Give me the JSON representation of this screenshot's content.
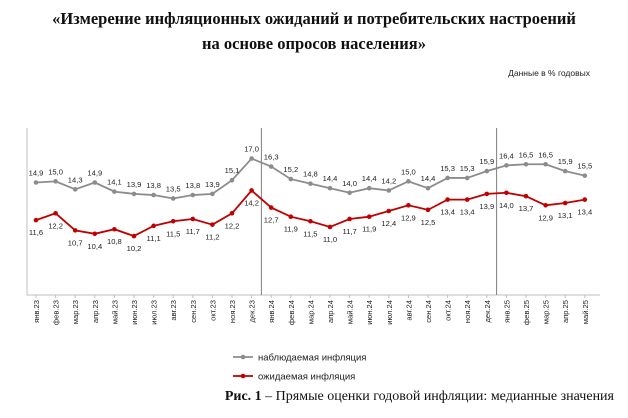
{
  "header": {
    "title_line1": "«Измерение инфляционных ожиданий и потребительских настроений",
    "title_line2": "на основе опросов населения»"
  },
  "units_note": "Данные в % годовых",
  "caption": {
    "label": "Рис. 1",
    "text": " – Прямые оценки годовой инфляции: медианные значения"
  },
  "chart_data": {
    "type": "line",
    "categories": [
      "янв.23",
      "фев.23",
      "мар.23",
      "апр.23",
      "май.23",
      "июн.23",
      "июл.23",
      "авг.23",
      "сен.23",
      "окт.23",
      "ноя.23",
      "дек.23",
      "янв.24",
      "фев.24",
      "мар.24",
      "апр.24",
      "май.24",
      "июн.24",
      "июл.24",
      "авг.24",
      "сен.24",
      "окт.24",
      "ноя.24",
      "дек.24",
      "янв.25",
      "фев.25",
      "мар.25",
      "апр.25",
      "май.25"
    ],
    "series": [
      {
        "name": "наблюдаемая инфляция",
        "color": "#8c8c8c",
        "values": [
          14.9,
          15.0,
          14.3,
          14.9,
          14.1,
          13.9,
          13.8,
          13.5,
          13.8,
          13.9,
          15.1,
          17.0,
          16.3,
          15.2,
          14.8,
          14.4,
          14.0,
          14.4,
          14.2,
          15.0,
          14.4,
          15.3,
          15.3,
          15.9,
          16.4,
          16.5,
          16.5,
          15.9,
          15.5
        ],
        "labels": [
          "14,9",
          "15,0",
          "14,3",
          "14,9",
          "14,1",
          "13,9",
          "13,8",
          "13,5",
          "13,8",
          "13,9",
          "15,1",
          "17,0",
          "16,3",
          "15,2",
          "14,8",
          "14,4",
          "14,0",
          "14,4",
          "14,2",
          "15,0",
          "14,4",
          "15,3",
          "15,3",
          "15,9",
          "16,4",
          "16,5",
          "16,5",
          "15,9",
          "15,5"
        ]
      },
      {
        "name": "ожидаемая инфляция",
        "color": "#c00000",
        "values": [
          11.6,
          12.2,
          10.7,
          10.4,
          10.8,
          10.2,
          11.1,
          11.5,
          11.7,
          11.2,
          12.2,
          14.2,
          12.7,
          11.9,
          11.5,
          11.0,
          11.7,
          11.9,
          12.4,
          12.9,
          12.5,
          13.4,
          13.4,
          13.9,
          14.0,
          13.7,
          12.9,
          13.1,
          13.4
        ],
        "labels": [
          "11,6",
          "12,2",
          "10,7",
          "10,4",
          "10,8",
          "10,2",
          "11,1",
          "11,5",
          "11,7",
          "11,2",
          "12,2",
          "14,2",
          "12,7",
          "11,9",
          "11,5",
          "11,0",
          "11,7",
          "11,9",
          "12,4",
          "12,9",
          "12,5",
          "13,4",
          "13,4",
          "13,9",
          "14,0",
          "13,7",
          "12,9",
          "13,1",
          "13,4"
        ]
      }
    ],
    "year_separators_after": [
      "дек.23",
      "дек.24"
    ],
    "legend_position": "bottom-center"
  }
}
